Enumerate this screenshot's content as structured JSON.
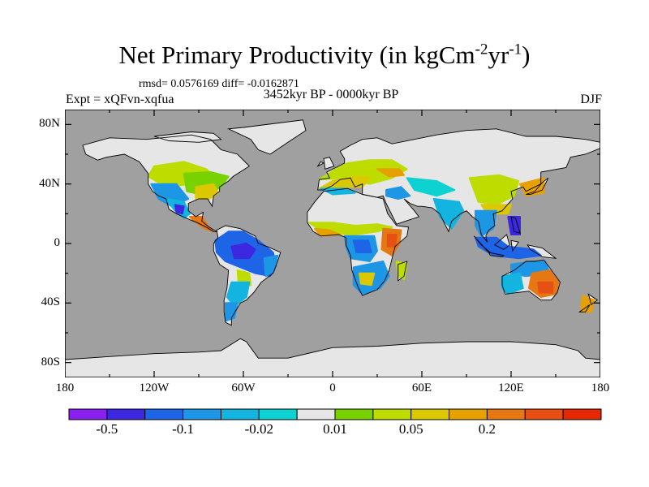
{
  "title": {
    "main": "Net Primary Productivity (in kgCm",
    "exp1": "-2",
    "mid": "yr",
    "exp2": "-1",
    "close": ")"
  },
  "stats_line": "rmsd= 0.0576169 diff= -0.0162871",
  "experiment": "Expt = xQFvn-xqfua",
  "period": "3452kyr BP - 0000kyr BP",
  "season": "DJF",
  "colors": {
    "ocean": "#a0a0a0",
    "land_neutral": "#e6e6e6",
    "coast": "#000000"
  },
  "map": {
    "projection": "cylindrical-equidistant",
    "lon_range": [
      -180,
      180
    ],
    "lat_range": [
      -90,
      90
    ],
    "lat_ticks": [
      {
        "value": 80,
        "label": "80N"
      },
      {
        "value": 40,
        "label": "40N"
      },
      {
        "value": 0,
        "label": "0"
      },
      {
        "value": -40,
        "label": "40S"
      },
      {
        "value": -80,
        "label": "80S"
      }
    ],
    "lon_ticks": [
      {
        "value": -180,
        "label": "180"
      },
      {
        "value": -120,
        "label": "120W"
      },
      {
        "value": -60,
        "label": "60W"
      },
      {
        "value": 0,
        "label": "0"
      },
      {
        "value": 60,
        "label": "60E"
      },
      {
        "value": 120,
        "label": "120E"
      },
      {
        "value": 180,
        "label": "180"
      }
    ]
  },
  "colorbar": {
    "colors": [
      "#8a1ff0",
      "#3c28e0",
      "#1e64e6",
      "#1e96e6",
      "#14b4e0",
      "#0ed2d2",
      "#e6e6e6",
      "#78d200",
      "#bedc00",
      "#dcc800",
      "#e6a000",
      "#e67814",
      "#e65014",
      "#e62800"
    ],
    "labels": [
      {
        "after_box": 1,
        "text": "-0.5"
      },
      {
        "after_box": 3,
        "text": "-0.1"
      },
      {
        "after_box": 5,
        "text": "-0.02"
      },
      {
        "after_box": 7,
        "text": "0.01"
      },
      {
        "after_box": 9,
        "text": "0.05"
      },
      {
        "after_box": 11,
        "text": "0.2"
      }
    ]
  },
  "anomaly_regions": [
    {
      "name": "north-america-west",
      "color": "#bedc00",
      "pts": [
        [
          -120,
          52
        ],
        [
          -100,
          55
        ],
        [
          -85,
          50
        ],
        [
          -78,
          44
        ],
        [
          -95,
          40
        ],
        [
          -112,
          38
        ],
        [
          -124,
          45
        ]
      ]
    },
    {
      "name": "north-america-east",
      "color": "#78d200",
      "pts": [
        [
          -100,
          47
        ],
        [
          -82,
          48
        ],
        [
          -70,
          45
        ],
        [
          -75,
          38
        ],
        [
          -85,
          32
        ],
        [
          -98,
          35
        ]
      ]
    },
    {
      "name": "usa-southeast",
      "color": "#dcc800",
      "pts": [
        [
          -92,
          38
        ],
        [
          -80,
          40
        ],
        [
          -77,
          34
        ],
        [
          -83,
          30
        ],
        [
          -92,
          30
        ]
      ]
    },
    {
      "name": "usa-southwest",
      "color": "#1e96e6",
      "pts": [
        [
          -122,
          40
        ],
        [
          -105,
          40
        ],
        [
          -97,
          30
        ],
        [
          -108,
          25
        ],
        [
          -117,
          30
        ]
      ]
    },
    {
      "name": "mexico",
      "color": "#14b4e0",
      "pts": [
        [
          -112,
          30
        ],
        [
          -100,
          28
        ],
        [
          -96,
          20
        ],
        [
          -100,
          17
        ],
        [
          -106,
          22
        ]
      ]
    },
    {
      "name": "mexico-core",
      "color": "#3c28e0",
      "pts": [
        [
          -106,
          26
        ],
        [
          -100,
          25
        ],
        [
          -101,
          20
        ],
        [
          -105,
          21
        ]
      ]
    },
    {
      "name": "central-america",
      "color": "#e67814",
      "pts": [
        [
          -96,
          18
        ],
        [
          -88,
          18
        ],
        [
          -84,
          12
        ],
        [
          -80,
          8
        ],
        [
          -86,
          10
        ],
        [
          -93,
          15
        ]
      ]
    },
    {
      "name": "amazon",
      "color": "#1e64e6",
      "pts": [
        [
          -79,
          2
        ],
        [
          -70,
          8
        ],
        [
          -60,
          8
        ],
        [
          -50,
          2
        ],
        [
          -40,
          -6
        ],
        [
          -38,
          -15
        ],
        [
          -42,
          -22
        ],
        [
          -52,
          -20
        ],
        [
          -62,
          -16
        ],
        [
          -72,
          -12
        ],
        [
          -78,
          -6
        ]
      ]
    },
    {
      "name": "amazon-core",
      "color": "#3c28e0",
      "pts": [
        [
          -68,
          -2
        ],
        [
          -58,
          0
        ],
        [
          -52,
          -4
        ],
        [
          -56,
          -10
        ],
        [
          -66,
          -10
        ]
      ]
    },
    {
      "name": "brazil-east",
      "color": "#1e96e6",
      "pts": [
        [
          -46,
          -10
        ],
        [
          -37,
          -8
        ],
        [
          -39,
          -18
        ],
        [
          -45,
          -22
        ]
      ]
    },
    {
      "name": "gran-chaco",
      "color": "#bedc00",
      "pts": [
        [
          -64,
          -18
        ],
        [
          -56,
          -20
        ],
        [
          -55,
          -28
        ],
        [
          -63,
          -30
        ]
      ]
    },
    {
      "name": "argentina",
      "color": "#14b4e0",
      "pts": [
        [
          -68,
          -26
        ],
        [
          -56,
          -26
        ],
        [
          -58,
          -36
        ],
        [
          -66,
          -42
        ],
        [
          -71,
          -36
        ]
      ]
    },
    {
      "name": "patagonia",
      "color": "#1e96e6",
      "pts": [
        [
          -72,
          -40
        ],
        [
          -64,
          -40
        ],
        [
          -66,
          -50
        ],
        [
          -72,
          -52
        ]
      ]
    },
    {
      "name": "europe",
      "color": "#bedc00",
      "pts": [
        [
          -9,
          43
        ],
        [
          2,
          50
        ],
        [
          10,
          54
        ],
        [
          25,
          56
        ],
        [
          40,
          56
        ],
        [
          50,
          50
        ],
        [
          40,
          44
        ],
        [
          25,
          40
        ],
        [
          10,
          44
        ]
      ]
    },
    {
      "name": "europe-south",
      "color": "#dcc800",
      "pts": [
        [
          -9,
          37
        ],
        [
          0,
          42
        ],
        [
          15,
          45
        ],
        [
          25,
          44
        ],
        [
          20,
          38
        ],
        [
          5,
          38
        ]
      ]
    },
    {
      "name": "europe-east",
      "color": "#e6a000",
      "pts": [
        [
          30,
          50
        ],
        [
          45,
          50
        ],
        [
          48,
          46
        ],
        [
          38,
          45
        ]
      ]
    },
    {
      "name": "mediterranean-blue",
      "color": "#14b4e0",
      "pts": [
        [
          -8,
          37
        ],
        [
          8,
          37
        ],
        [
          15,
          34
        ],
        [
          0,
          33
        ]
      ]
    },
    {
      "name": "middle-east",
      "color": "#1e96e6",
      "pts": [
        [
          36,
          36
        ],
        [
          46,
          38
        ],
        [
          52,
          32
        ],
        [
          44,
          30
        ],
        [
          36,
          32
        ]
      ]
    },
    {
      "name": "central-asia",
      "color": "#0ed2d2",
      "pts": [
        [
          50,
          44
        ],
        [
          70,
          42
        ],
        [
          82,
          36
        ],
        [
          70,
          32
        ],
        [
          55,
          36
        ]
      ]
    },
    {
      "name": "india",
      "color": "#14b4e0",
      "pts": [
        [
          68,
          30
        ],
        [
          85,
          28
        ],
        [
          88,
          22
        ],
        [
          80,
          10
        ],
        [
          72,
          18
        ]
      ]
    },
    {
      "name": "china",
      "color": "#bedc00",
      "pts": [
        [
          92,
          44
        ],
        [
          112,
          46
        ],
        [
          125,
          42
        ],
        [
          122,
          32
        ],
        [
          110,
          26
        ],
        [
          98,
          28
        ]
      ]
    },
    {
      "name": "china-south",
      "color": "#dcc800",
      "pts": [
        [
          100,
          26
        ],
        [
          120,
          26
        ],
        [
          118,
          20
        ],
        [
          104,
          20
        ]
      ]
    },
    {
      "name": "korea-japan",
      "color": "#e6a000",
      "pts": [
        [
          126,
          40
        ],
        [
          142,
          44
        ],
        [
          142,
          34
        ],
        [
          130,
          32
        ]
      ]
    },
    {
      "name": "se-asia",
      "color": "#1e96e6",
      "pts": [
        [
          96,
          22
        ],
        [
          110,
          22
        ],
        [
          108,
          10
        ],
        [
          100,
          5
        ],
        [
          96,
          12
        ]
      ]
    },
    {
      "name": "indonesia",
      "color": "#1e64e6",
      "pts": [
        [
          96,
          4
        ],
        [
          110,
          4
        ],
        [
          118,
          -2
        ],
        [
          135,
          -4
        ],
        [
          140,
          -8
        ],
        [
          125,
          -10
        ],
        [
          108,
          -8
        ],
        [
          98,
          -2
        ]
      ]
    },
    {
      "name": "philippines",
      "color": "#3c28e0",
      "pts": [
        [
          118,
          18
        ],
        [
          126,
          18
        ],
        [
          126,
          6
        ],
        [
          120,
          6
        ]
      ]
    },
    {
      "name": "sahel",
      "color": "#bedc00",
      "pts": [
        [
          -16,
          14
        ],
        [
          0,
          14
        ],
        [
          15,
          12
        ],
        [
          30,
          13
        ],
        [
          40,
          11
        ],
        [
          30,
          8
        ],
        [
          15,
          6
        ],
        [
          -5,
          7
        ]
      ]
    },
    {
      "name": "west-africa-coast",
      "color": "#e6a000",
      "pts": [
        [
          -12,
          10
        ],
        [
          -2,
          9
        ],
        [
          5,
          6
        ],
        [
          -8,
          5
        ]
      ]
    },
    {
      "name": "congo",
      "color": "#1e96e6",
      "pts": [
        [
          8,
          5
        ],
        [
          28,
          5
        ],
        [
          30,
          -5
        ],
        [
          25,
          -12
        ],
        [
          12,
          -10
        ],
        [
          9,
          -2
        ]
      ]
    },
    {
      "name": "congo-core",
      "color": "#1e64e6",
      "pts": [
        [
          14,
          2
        ],
        [
          24,
          2
        ],
        [
          26,
          -6
        ],
        [
          16,
          -6
        ]
      ]
    },
    {
      "name": "east-africa",
      "color": "#e67814",
      "pts": [
        [
          34,
          10
        ],
        [
          46,
          9
        ],
        [
          45,
          0
        ],
        [
          40,
          -8
        ],
        [
          33,
          -4
        ]
      ]
    },
    {
      "name": "horn-core",
      "color": "#e65014",
      "pts": [
        [
          37,
          6
        ],
        [
          43,
          6
        ],
        [
          42,
          -2
        ],
        [
          37,
          -2
        ]
      ]
    },
    {
      "name": "southern-africa",
      "color": "#1e96e6",
      "pts": [
        [
          14,
          -16
        ],
        [
          34,
          -12
        ],
        [
          38,
          -22
        ],
        [
          32,
          -30
        ],
        [
          20,
          -34
        ],
        [
          14,
          -28
        ]
      ]
    },
    {
      "name": "madagascar",
      "color": "#bedc00",
      "pts": [
        [
          43,
          -12
        ],
        [
          50,
          -14
        ],
        [
          48,
          -24
        ],
        [
          44,
          -22
        ]
      ]
    },
    {
      "name": "kalahari",
      "color": "#dcc800",
      "pts": [
        [
          18,
          -20
        ],
        [
          28,
          -20
        ],
        [
          26,
          -28
        ],
        [
          19,
          -27
        ]
      ]
    },
    {
      "name": "australia-north",
      "color": "#1e96e6",
      "pts": [
        [
          120,
          -14
        ],
        [
          135,
          -12
        ],
        [
          143,
          -12
        ],
        [
          146,
          -20
        ],
        [
          130,
          -22
        ],
        [
          120,
          -20
        ]
      ]
    },
    {
      "name": "australia-east",
      "color": "#e67814",
      "pts": [
        [
          134,
          -20
        ],
        [
          146,
          -18
        ],
        [
          152,
          -26
        ],
        [
          150,
          -34
        ],
        [
          140,
          -36
        ],
        [
          132,
          -30
        ]
      ]
    },
    {
      "name": "australia-se-core",
      "color": "#e65014",
      "pts": [
        [
          138,
          -26
        ],
        [
          148,
          -26
        ],
        [
          148,
          -33
        ],
        [
          139,
          -33
        ]
      ]
    },
    {
      "name": "australia-west",
      "color": "#14b4e0",
      "pts": [
        [
          114,
          -22
        ],
        [
          126,
          -20
        ],
        [
          128,
          -30
        ],
        [
          118,
          -34
        ],
        [
          114,
          -30
        ]
      ]
    },
    {
      "name": "new-zealand",
      "color": "#e6a000",
      "pts": [
        [
          168,
          -35
        ],
        [
          176,
          -38
        ],
        [
          174,
          -46
        ],
        [
          167,
          -46
        ]
      ]
    }
  ]
}
